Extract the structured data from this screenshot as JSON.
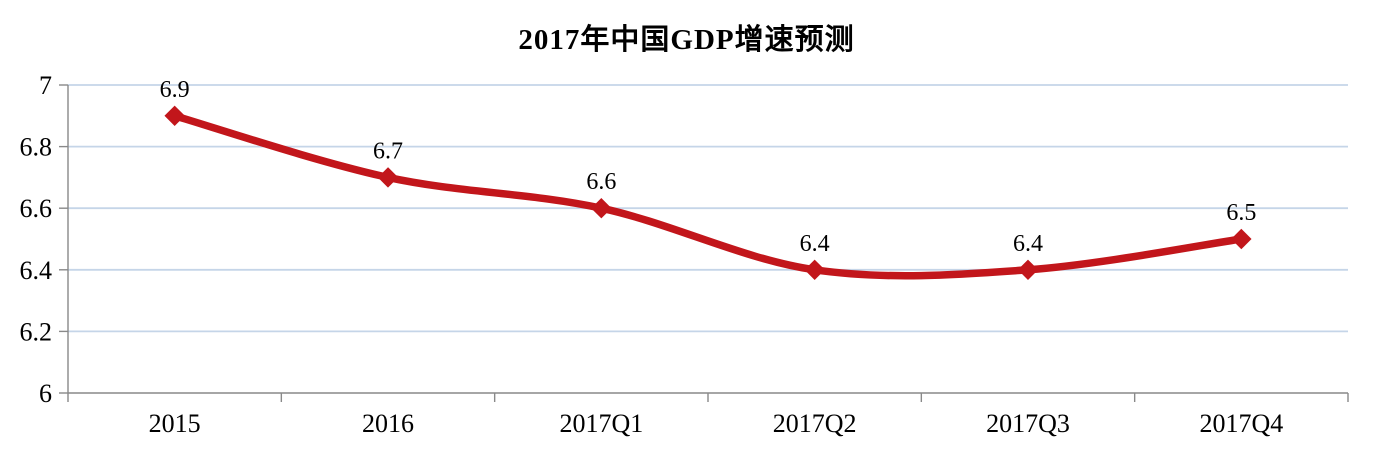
{
  "chart_data": {
    "type": "line",
    "title": "2017年中国GDP增速预测",
    "categories": [
      "2015",
      "2016",
      "2017Q1",
      "2017Q2",
      "2017Q3",
      "2017Q4"
    ],
    "values": [
      6.9,
      6.7,
      6.6,
      6.4,
      6.4,
      6.5
    ],
    "data_labels": [
      "6.9",
      "6.7",
      "6.6",
      "6.4",
      "6.4",
      "6.5"
    ],
    "xlabel": "",
    "ylabel": "",
    "ylim": [
      6,
      7
    ],
    "ytick_step": 0.2,
    "ytick_labels": [
      "6",
      "6.2",
      "6.4",
      "6.6",
      "6.8",
      "7"
    ],
    "grid": true,
    "legend_position": "none",
    "line_style": "smooth",
    "marker_style": "diamond",
    "colors": {
      "line": "#C2161B",
      "marker": "#C2161B",
      "gridline": "#C5D5E8",
      "axis": "#898989",
      "text": "#000000",
      "background": "#FFFFFF"
    }
  }
}
